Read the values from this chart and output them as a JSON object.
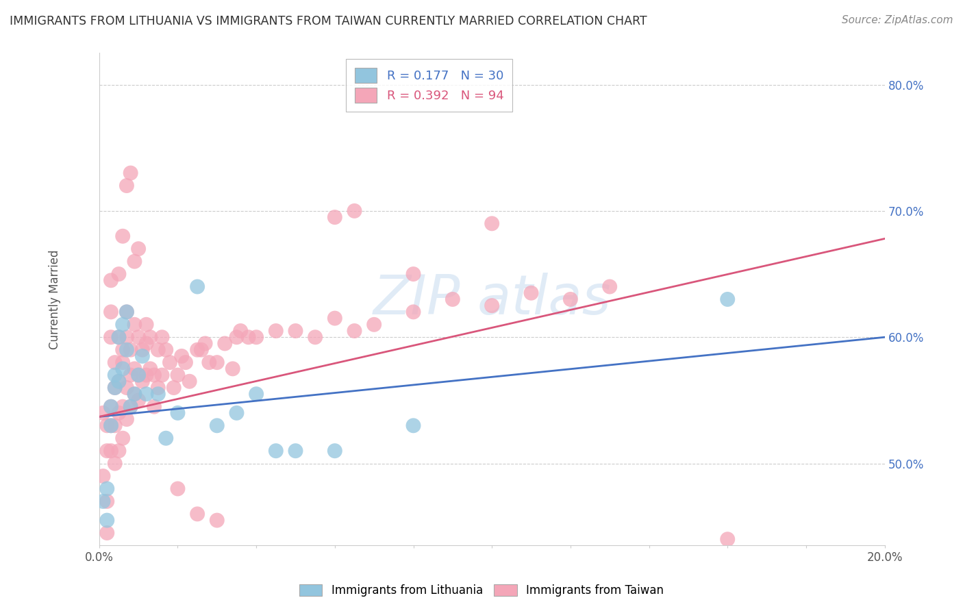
{
  "title": "IMMIGRANTS FROM LITHUANIA VS IMMIGRANTS FROM TAIWAN CURRENTLY MARRIED CORRELATION CHART",
  "source": "Source: ZipAtlas.com",
  "ylabel": "Currently Married",
  "xlim": [
    0.0,
    0.2
  ],
  "ylim": [
    0.435,
    0.825
  ],
  "ytick_positions": [
    0.5,
    0.6,
    0.7,
    0.8
  ],
  "ytick_labels": [
    "50.0%",
    "60.0%",
    "70.0%",
    "80.0%"
  ],
  "xtick_positions": [
    0.0,
    0.02,
    0.04,
    0.06,
    0.08,
    0.1,
    0.12,
    0.14,
    0.16,
    0.18,
    0.2
  ],
  "xtick_labels": [
    "0.0%",
    "",
    "",
    "",
    "",
    "",
    "",
    "",
    "",
    "",
    "20.0%"
  ],
  "legend_r1": "R = 0.177   N = 30",
  "legend_r2": "R = 0.392   N = 94",
  "blue_color": "#92C5DE",
  "pink_color": "#F4A6B8",
  "blue_line_color": "#4472C4",
  "pink_line_color": "#D9567B",
  "lith_x": [
    0.001,
    0.002,
    0.002,
    0.003,
    0.003,
    0.004,
    0.004,
    0.005,
    0.005,
    0.006,
    0.006,
    0.007,
    0.007,
    0.008,
    0.009,
    0.01,
    0.011,
    0.012,
    0.015,
    0.017,
    0.02,
    0.025,
    0.03,
    0.035,
    0.04,
    0.045,
    0.05,
    0.06,
    0.08,
    0.16
  ],
  "lith_y": [
    0.47,
    0.455,
    0.48,
    0.53,
    0.545,
    0.56,
    0.57,
    0.565,
    0.6,
    0.61,
    0.575,
    0.62,
    0.59,
    0.545,
    0.555,
    0.57,
    0.585,
    0.555,
    0.555,
    0.52,
    0.54,
    0.64,
    0.53,
    0.54,
    0.555,
    0.51,
    0.51,
    0.51,
    0.53,
    0.63
  ],
  "taiwan_x": [
    0.001,
    0.001,
    0.002,
    0.002,
    0.002,
    0.002,
    0.003,
    0.003,
    0.003,
    0.003,
    0.003,
    0.003,
    0.004,
    0.004,
    0.004,
    0.004,
    0.005,
    0.005,
    0.005,
    0.005,
    0.006,
    0.006,
    0.006,
    0.006,
    0.007,
    0.007,
    0.007,
    0.007,
    0.008,
    0.008,
    0.008,
    0.009,
    0.009,
    0.009,
    0.01,
    0.01,
    0.01,
    0.011,
    0.011,
    0.012,
    0.012,
    0.012,
    0.013,
    0.013,
    0.014,
    0.014,
    0.015,
    0.015,
    0.016,
    0.016,
    0.017,
    0.018,
    0.019,
    0.02,
    0.021,
    0.022,
    0.023,
    0.025,
    0.026,
    0.027,
    0.028,
    0.03,
    0.032,
    0.034,
    0.035,
    0.036,
    0.038,
    0.04,
    0.045,
    0.05,
    0.055,
    0.06,
    0.065,
    0.07,
    0.08,
    0.09,
    0.1,
    0.11,
    0.12,
    0.13,
    0.06,
    0.065,
    0.08,
    0.1,
    0.005,
    0.006,
    0.007,
    0.008,
    0.009,
    0.01,
    0.02,
    0.025,
    0.03,
    0.16
  ],
  "taiwan_y": [
    0.54,
    0.49,
    0.51,
    0.53,
    0.47,
    0.445,
    0.51,
    0.53,
    0.545,
    0.62,
    0.645,
    0.6,
    0.53,
    0.5,
    0.56,
    0.58,
    0.51,
    0.54,
    0.565,
    0.6,
    0.52,
    0.545,
    0.58,
    0.59,
    0.535,
    0.56,
    0.6,
    0.62,
    0.545,
    0.57,
    0.59,
    0.555,
    0.575,
    0.61,
    0.55,
    0.57,
    0.6,
    0.565,
    0.59,
    0.57,
    0.595,
    0.61,
    0.575,
    0.6,
    0.545,
    0.57,
    0.56,
    0.59,
    0.57,
    0.6,
    0.59,
    0.58,
    0.56,
    0.57,
    0.585,
    0.58,
    0.565,
    0.59,
    0.59,
    0.595,
    0.58,
    0.58,
    0.595,
    0.575,
    0.6,
    0.605,
    0.6,
    0.6,
    0.605,
    0.605,
    0.6,
    0.615,
    0.605,
    0.61,
    0.62,
    0.63,
    0.625,
    0.635,
    0.63,
    0.64,
    0.695,
    0.7,
    0.65,
    0.69,
    0.65,
    0.68,
    0.72,
    0.73,
    0.66,
    0.67,
    0.48,
    0.46,
    0.455,
    0.44
  ]
}
